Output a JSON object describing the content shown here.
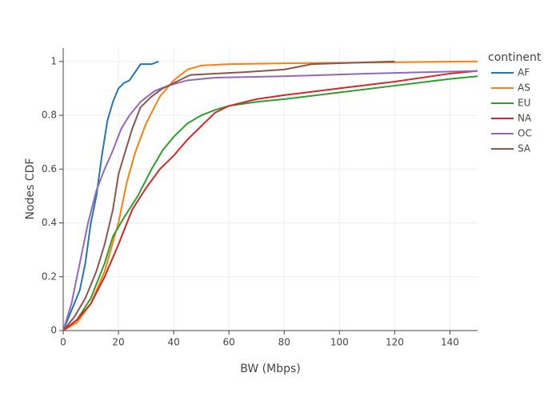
{
  "chart_data": {
    "type": "line",
    "x_label": "BW (Mbps)",
    "y_label": "Nodes CDF",
    "legend_title": "continent",
    "xlim": [
      0,
      150
    ],
    "ylim": [
      0,
      1.05
    ],
    "xticks": [
      0,
      20,
      40,
      60,
      80,
      100,
      120,
      140
    ],
    "yticks": [
      0,
      0.2,
      0.4,
      0.6,
      0.8,
      1
    ],
    "grid": true,
    "legend": "right",
    "series": [
      {
        "name": "AF",
        "color": "#1f77b4",
        "x": [
          0,
          2,
          4,
          6,
          8,
          10,
          12,
          14,
          16,
          18,
          20,
          22,
          24,
          26,
          28,
          32,
          34.5
        ],
        "values": [
          0,
          0.05,
          0.1,
          0.15,
          0.25,
          0.4,
          0.5,
          0.65,
          0.78,
          0.85,
          0.9,
          0.92,
          0.93,
          0.96,
          0.99,
          0.99,
          1
        ]
      },
      {
        "name": "AS",
        "color": "#ff7f0e",
        "x": [
          0,
          5,
          10,
          15,
          20,
          23,
          26,
          30,
          35,
          40,
          45,
          50,
          60,
          80,
          120,
          150
        ],
        "values": [
          0,
          0.03,
          0.1,
          0.22,
          0.4,
          0.55,
          0.66,
          0.77,
          0.87,
          0.93,
          0.97,
          0.985,
          0.99,
          0.993,
          0.997,
          1
        ]
      },
      {
        "name": "EU",
        "color": "#2ca02c",
        "x": [
          0,
          5,
          10,
          15,
          18,
          22,
          27,
          32,
          36,
          40,
          45,
          50,
          55,
          60,
          70,
          80,
          100,
          120,
          140,
          150
        ],
        "values": [
          0,
          0.04,
          0.12,
          0.25,
          0.35,
          0.42,
          0.5,
          0.6,
          0.67,
          0.72,
          0.77,
          0.8,
          0.82,
          0.835,
          0.85,
          0.86,
          0.885,
          0.91,
          0.935,
          0.945
        ]
      },
      {
        "name": "NA",
        "color": "#d62728",
        "x": [
          0,
          5,
          10,
          15,
          20,
          25,
          30,
          35,
          40,
          45,
          50,
          55,
          60,
          70,
          80,
          100,
          120,
          140,
          150
        ],
        "values": [
          0,
          0.04,
          0.1,
          0.2,
          0.32,
          0.45,
          0.53,
          0.6,
          0.65,
          0.71,
          0.76,
          0.81,
          0.835,
          0.86,
          0.875,
          0.9,
          0.925,
          0.955,
          0.965
        ]
      },
      {
        "name": "OC",
        "color": "#9467bd",
        "x": [
          0,
          3,
          6,
          9,
          12,
          15,
          18,
          21,
          24,
          28,
          33,
          38,
          45,
          55,
          80,
          110,
          150
        ],
        "values": [
          0,
          0.1,
          0.25,
          0.4,
          0.52,
          0.6,
          0.67,
          0.75,
          0.8,
          0.85,
          0.89,
          0.91,
          0.93,
          0.94,
          0.945,
          0.955,
          0.965
        ]
      },
      {
        "name": "SA",
        "color": "#8c564b",
        "x": [
          0,
          4,
          8,
          12,
          15,
          18,
          20,
          22,
          25,
          28,
          32,
          36,
          42,
          46,
          65,
          80,
          90,
          120
        ],
        "values": [
          0,
          0.05,
          0.12,
          0.22,
          0.32,
          0.45,
          0.58,
          0.65,
          0.75,
          0.83,
          0.87,
          0.9,
          0.93,
          0.95,
          0.96,
          0.97,
          0.99,
          1
        ]
      }
    ]
  }
}
